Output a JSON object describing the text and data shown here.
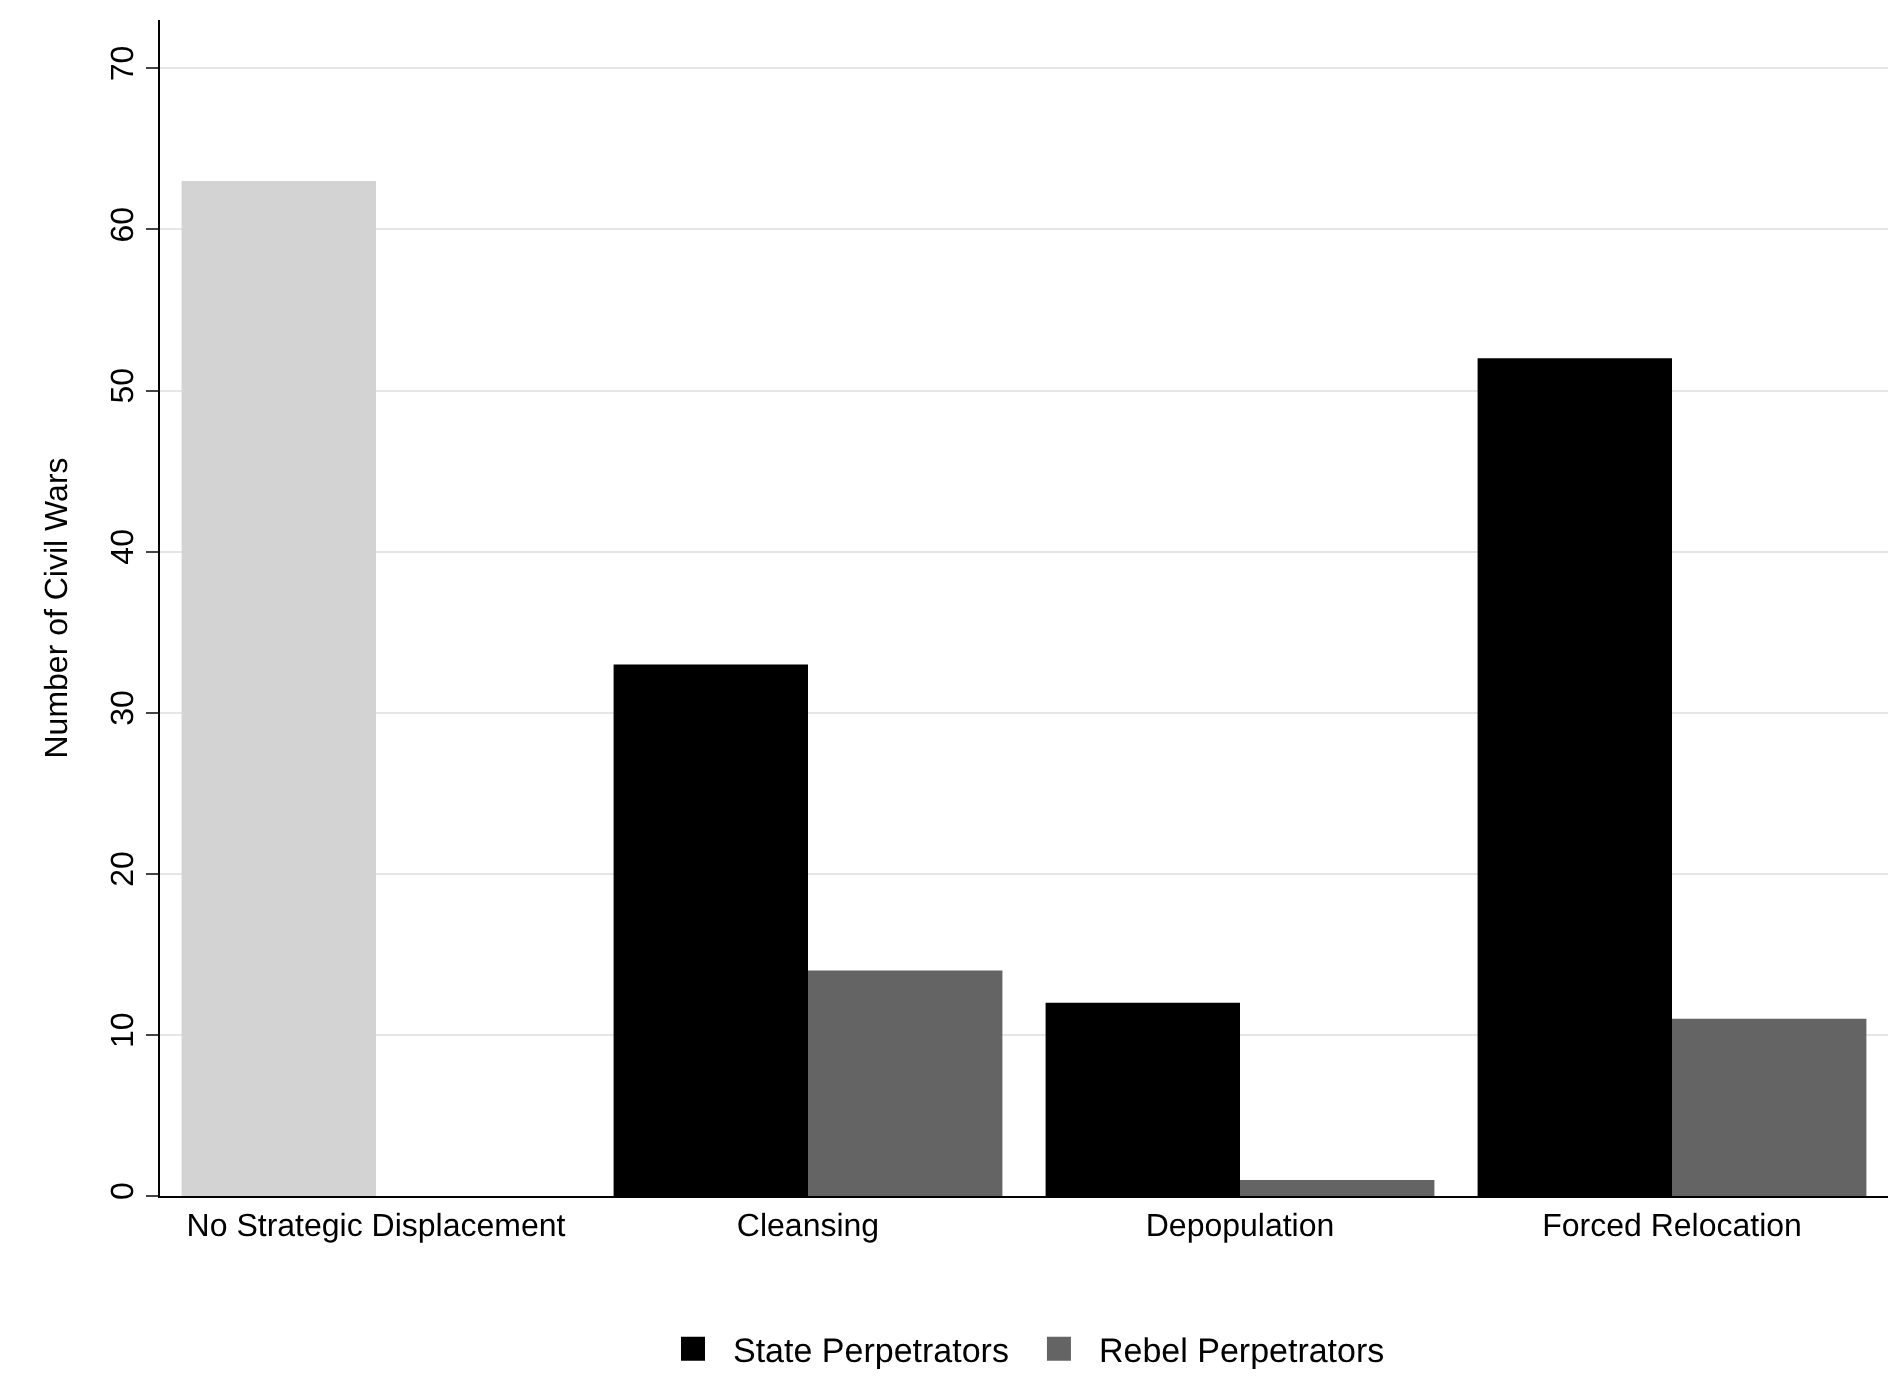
{
  "chart_data": {
    "type": "bar",
    "ylabel": "Number of Civil Wars",
    "categories": [
      "No Strategic Displacement",
      "Cleansing",
      "Depopulation",
      "Forced Relocation"
    ],
    "series": [
      {
        "name": "State Perpetrators",
        "color": "#000000",
        "values": [
          null,
          33,
          12,
          52
        ]
      },
      {
        "name": "Rebel Perpetrators",
        "color": "#646464",
        "values": [
          null,
          14,
          1,
          11
        ]
      },
      {
        "color": "#d3d3d3",
        "values": [
          63,
          null,
          null,
          null
        ]
      }
    ],
    "ylim": [
      0,
      73
    ],
    "yticks": [
      0,
      10,
      20,
      30,
      40,
      50,
      60,
      70
    ],
    "grid": "y",
    "legend": "bottom"
  }
}
